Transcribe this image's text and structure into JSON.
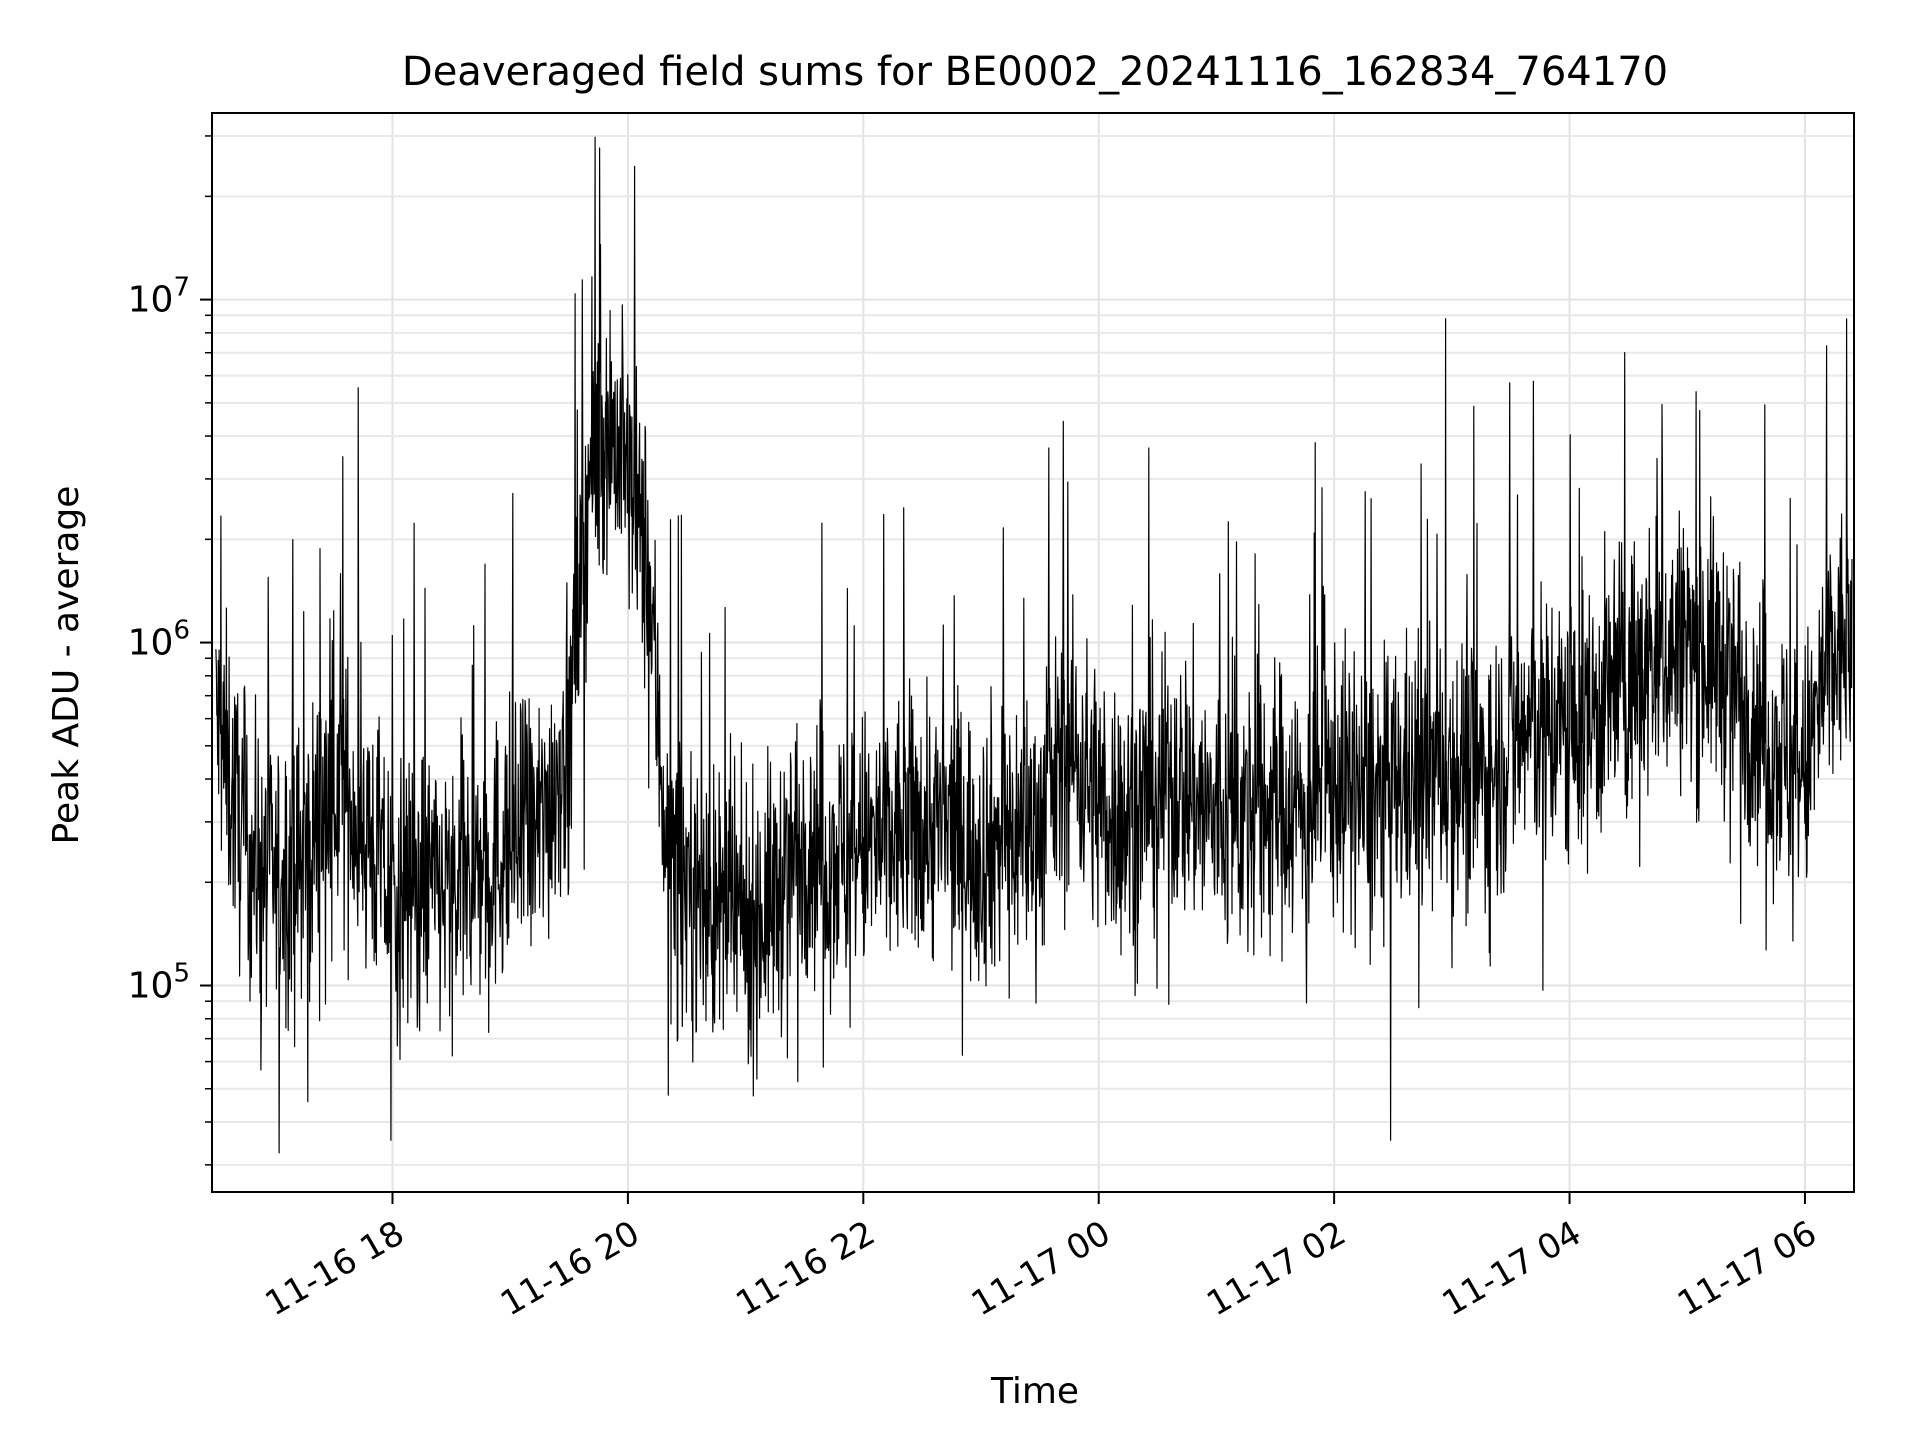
{
  "chart_data": {
    "type": "line",
    "title": "Deaveraged field sums for BE0002_20241116_162834_764170",
    "xlabel": "Time",
    "ylabel": "Peak ADU - average",
    "yscale": "log",
    "ylim": [
      25000,
      35000000
    ],
    "xlim": [
      "11-16 16:28",
      "11-17 06:25"
    ],
    "grid": true,
    "x_ticks": [
      "11-16 18",
      "11-16 20",
      "11-16 22",
      "11-17 00",
      "11-17 02",
      "11-17 04",
      "11-17 06"
    ],
    "y_ticks": [
      {
        "base": "10",
        "exp": "5",
        "value": 100000
      },
      {
        "base": "10",
        "exp": "6",
        "value": 1000000
      },
      {
        "base": "10",
        "exp": "7",
        "value": 10000000
      }
    ],
    "line_color": "#000000",
    "series": [
      {
        "x": [
          "11-16 16:30",
          "11-16 16:45",
          "11-16 17:00",
          "11-16 17:15",
          "11-16 17:30",
          "11-16 17:45",
          "11-16 18:00",
          "11-16 18:15",
          "11-16 18:30",
          "11-16 18:45",
          "11-16 19:00",
          "11-16 19:15",
          "11-16 19:30",
          "11-16 19:40",
          "11-16 19:50",
          "11-16 20:00",
          "11-16 20:10",
          "11-16 20:20",
          "11-16 20:30",
          "11-16 20:45",
          "11-16 21:00",
          "11-16 21:15",
          "11-16 21:30",
          "11-16 21:45",
          "11-16 22:00",
          "11-16 22:15",
          "11-16 22:30",
          "11-16 22:45",
          "11-16 23:00",
          "11-16 23:15",
          "11-16 23:30",
          "11-16 23:45",
          "11-17 00:00",
          "11-17 00:15",
          "11-17 00:30",
          "11-17 00:45",
          "11-17 01:00",
          "11-17 01:15",
          "11-17 01:30",
          "11-17 01:45",
          "11-17 02:00",
          "11-17 02:15",
          "11-17 02:30",
          "11-17 02:45",
          "11-17 03:00",
          "11-17 03:15",
          "11-17 03:30",
          "11-17 03:45",
          "11-17 04:00",
          "11-17 04:15",
          "11-17 04:30",
          "11-17 04:45",
          "11-17 05:00",
          "11-17 05:15",
          "11-17 05:30",
          "11-17 05:45",
          "11-17 06:00",
          "11-17 06:10",
          "11-17 06:20"
        ],
        "values": [
          600000,
          250000,
          200000,
          230000,
          400000,
          300000,
          180000,
          200000,
          180000,
          220000,
          260000,
          280000,
          550000,
          3000000,
          4500000,
          3000000,
          1700000,
          250000,
          200000,
          160000,
          150000,
          180000,
          280000,
          240000,
          250000,
          270000,
          300000,
          280000,
          250000,
          280000,
          300000,
          500000,
          350000,
          300000,
          400000,
          380000,
          300000,
          320000,
          350000,
          330000,
          400000,
          350000,
          380000,
          400000,
          450000,
          400000,
          500000,
          600000,
          550000,
          650000,
          800000,
          900000,
          1000000,
          900000,
          700000,
          500000,
          400000,
          800000,
          1000000
        ]
      }
    ]
  }
}
